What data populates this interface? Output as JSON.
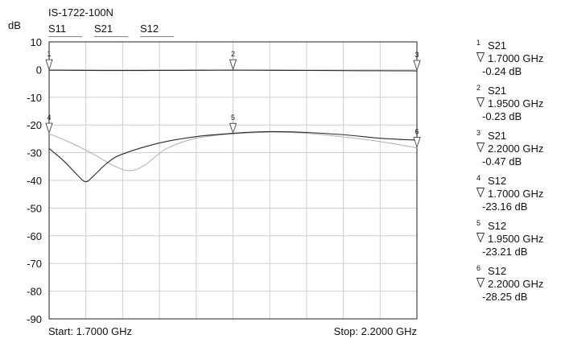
{
  "chart_data": {
    "type": "line",
    "title": "IS-1722-100N",
    "ylabel": "dB",
    "xlim": [
      1.7,
      2.2
    ],
    "ylim": [
      -90,
      10
    ],
    "yticks": [
      10,
      0,
      -10,
      -20,
      -30,
      -40,
      -50,
      -60,
      -70,
      -80,
      -90
    ],
    "grid": true,
    "start_label": "Start: 1.7000 GHz",
    "stop_label": "Stop: 2.2000 GHz",
    "legend_tabs": [
      "S11",
      "S21",
      "S12"
    ],
    "series": [
      {
        "name": "S21",
        "color": "#2a2a2a",
        "x": [
          1.7,
          1.75,
          1.8,
          1.85,
          1.9,
          1.95,
          2.0,
          2.05,
          2.1,
          2.15,
          2.2
        ],
        "y": [
          -0.24,
          -0.3,
          -0.35,
          -0.3,
          -0.28,
          -0.23,
          -0.28,
          -0.32,
          -0.38,
          -0.42,
          -0.47
        ]
      },
      {
        "name": "S11",
        "color": "#2a2a2a",
        "x": [
          1.7,
          1.72,
          1.74,
          1.75,
          1.76,
          1.78,
          1.8,
          1.85,
          1.9,
          1.95,
          2.0,
          2.05,
          2.1,
          2.15,
          2.2
        ],
        "y": [
          -28.5,
          -33,
          -38.5,
          -40.5,
          -38.5,
          -33.5,
          -30.5,
          -26.5,
          -24.2,
          -23.0,
          -22.4,
          -22.7,
          -23.5,
          -24.8,
          -25.5
        ]
      },
      {
        "name": "S12",
        "color": "#b3b3b3",
        "x": [
          1.7,
          1.73,
          1.76,
          1.79,
          1.81,
          1.83,
          1.86,
          1.9,
          1.95,
          2.0,
          2.05,
          2.1,
          2.15,
          2.2
        ],
        "y": [
          -23.16,
          -26.5,
          -30.5,
          -35,
          -36.5,
          -34.5,
          -28.5,
          -24.8,
          -23.21,
          -22.6,
          -23.0,
          -24.3,
          -26.0,
          -28.25
        ]
      }
    ],
    "markers": [
      {
        "num": "1",
        "param": "S21",
        "x": 1.7,
        "y": -0.24,
        "freq": "1.7000 GHz",
        "value": "-0.24 dB"
      },
      {
        "num": "2",
        "param": "S21",
        "x": 1.95,
        "y": -0.23,
        "freq": "1.9500 GHz",
        "value": "-0.23 dB"
      },
      {
        "num": "3",
        "param": "S21",
        "x": 2.2,
        "y": -0.47,
        "freq": "2.2000 GHz",
        "value": "-0.47 dB"
      },
      {
        "num": "4",
        "param": "S12",
        "x": 1.7,
        "y": -23.16,
        "freq": "1.7000 GHz",
        "value": "-23.16 dB"
      },
      {
        "num": "5",
        "param": "S12",
        "x": 1.95,
        "y": -23.21,
        "freq": "1.9500 GHz",
        "value": "-23.21 dB"
      },
      {
        "num": "6",
        "param": "S12",
        "x": 2.2,
        "y": -28.25,
        "freq": "2.2000 GHz",
        "value": "-28.25 dB"
      }
    ]
  }
}
